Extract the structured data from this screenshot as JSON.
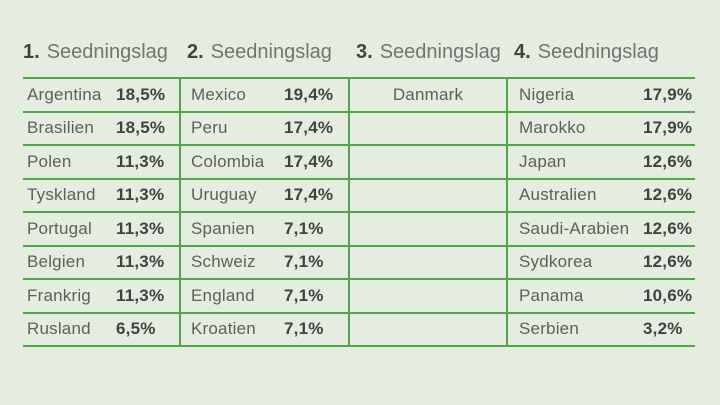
{
  "pots": [
    {
      "number": "1.",
      "title": "Seedningslag",
      "rows": [
        {
          "country": "Argentina",
          "pct": "18,5%"
        },
        {
          "country": "Brasilien",
          "pct": "18,5%"
        },
        {
          "country": "Polen",
          "pct": "11,3%"
        },
        {
          "country": "Tyskland",
          "pct": "11,3%"
        },
        {
          "country": "Portugal",
          "pct": "11,3%"
        },
        {
          "country": "Belgien",
          "pct": "11,3%"
        },
        {
          "country": "Frankrig",
          "pct": "11,3%"
        },
        {
          "country": "Rusland",
          "pct": "6,5%"
        }
      ]
    },
    {
      "number": "2.",
      "title": "Seedningslag",
      "rows": [
        {
          "country": "Mexico",
          "pct": "19,4%"
        },
        {
          "country": "Peru",
          "pct": "17,4%"
        },
        {
          "country": "Colombia",
          "pct": "17,4%"
        },
        {
          "country": "Uruguay",
          "pct": "17,4%"
        },
        {
          "country": "Spanien",
          "pct": "7,1%"
        },
        {
          "country": "Schweiz",
          "pct": "7,1%"
        },
        {
          "country": "England",
          "pct": "7,1%"
        },
        {
          "country": "Kroatien",
          "pct": "7,1%"
        }
      ]
    },
    {
      "number": "3.",
      "title": "Seedningslag",
      "rows": [
        {
          "country": "Danmark",
          "pct": ""
        },
        {
          "country": "",
          "pct": ""
        },
        {
          "country": "",
          "pct": ""
        },
        {
          "country": "",
          "pct": ""
        },
        {
          "country": "",
          "pct": ""
        },
        {
          "country": "",
          "pct": ""
        },
        {
          "country": "",
          "pct": ""
        },
        {
          "country": "",
          "pct": ""
        }
      ]
    },
    {
      "number": "4.",
      "title": "Seedningslag",
      "rows": [
        {
          "country": "Nigeria",
          "pct": "17,9%"
        },
        {
          "country": "Marokko",
          "pct": "17,9%"
        },
        {
          "country": "Japan",
          "pct": "12,6%"
        },
        {
          "country": "Australien",
          "pct": "12,6%"
        },
        {
          "country": "Saudi-Arabien",
          "pct": "12,6%"
        },
        {
          "country": "Sydkorea",
          "pct": "12,6%"
        },
        {
          "country": "Panama",
          "pct": "10,6%"
        },
        {
          "country": "Serbien",
          "pct": "3,2%"
        }
      ]
    }
  ],
  "colors": {
    "background": "#e5ede1",
    "grid_line": "#55a34b",
    "country_text": "#5a615d",
    "percent_text": "#3e4441",
    "header_number": "#3e4441",
    "header_label": "#6e7672"
  },
  "chart_data": {
    "type": "table",
    "title": "Seedningslag 1-4 (seeding pots with percentages)",
    "columns": [
      "1. Seedningslag",
      "2. Seedningslag",
      "3. Seedningslag",
      "4. Seedningslag"
    ],
    "series": [
      {
        "name": "1. Seedningslag",
        "labels": [
          "Argentina",
          "Brasilien",
          "Polen",
          "Tyskland",
          "Portugal",
          "Belgien",
          "Frankrig",
          "Rusland"
        ],
        "values": [
          18.5,
          18.5,
          11.3,
          11.3,
          11.3,
          11.3,
          11.3,
          6.5
        ]
      },
      {
        "name": "2. Seedningslag",
        "labels": [
          "Mexico",
          "Peru",
          "Colombia",
          "Uruguay",
          "Spanien",
          "Schweiz",
          "England",
          "Kroatien"
        ],
        "values": [
          19.4,
          17.4,
          17.4,
          17.4,
          7.1,
          7.1,
          7.1,
          7.1
        ]
      },
      {
        "name": "3. Seedningslag",
        "labels": [
          "Danmark"
        ],
        "values": [
          null
        ]
      },
      {
        "name": "4. Seedningslag",
        "labels": [
          "Nigeria",
          "Marokko",
          "Japan",
          "Australien",
          "Saudi-Arabien",
          "Sydkorea",
          "Panama",
          "Serbien"
        ],
        "values": [
          17.9,
          17.9,
          12.6,
          12.6,
          12.6,
          12.6,
          10.6,
          3.2
        ]
      }
    ],
    "layout": "4 columns, 8 rows each, green horizontal and vertical rules, values use Danish decimal comma"
  }
}
